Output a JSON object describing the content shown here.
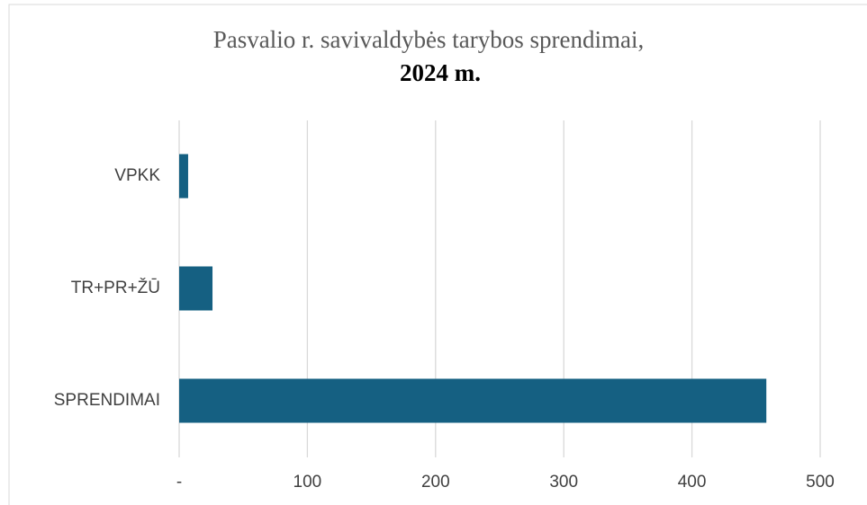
{
  "chart_data": {
    "type": "barh",
    "title": "Pasvalio r. savivaldybės tarybos sprendimai,",
    "subtitle": "2024 m.",
    "categories": [
      "VPKK",
      "TR+PR+ŽŪ",
      "SPRENDIMAI"
    ],
    "values": [
      7,
      26,
      458
    ],
    "color": "#156082",
    "xlim": [
      0,
      500
    ],
    "xticks": [
      {
        "value": 0,
        "label": "-"
      },
      100,
      200,
      300,
      400,
      500
    ],
    "grid": true
  }
}
